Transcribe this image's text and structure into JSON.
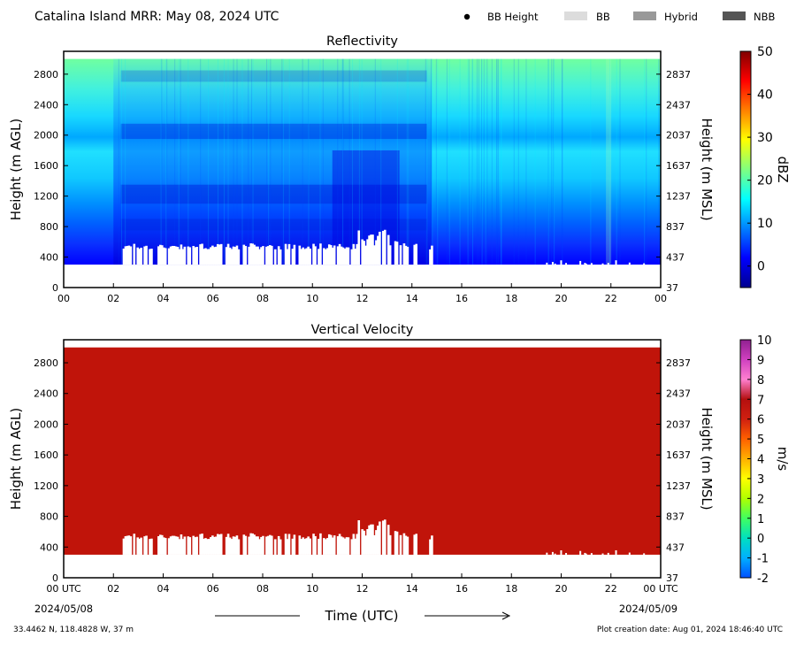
{
  "header": {
    "title": "Catalina Island MRR:  May 08, 2024 UTC",
    "legend": [
      {
        "label": "BB Height",
        "swatch": "dot",
        "color": "#000000"
      },
      {
        "label": "BB",
        "swatch": "bar",
        "color": "#dcdcdc"
      },
      {
        "label": "Hybrid",
        "swatch": "bar",
        "color": "#999999"
      },
      {
        "label": "NBB",
        "swatch": "bar",
        "color": "#555555"
      }
    ]
  },
  "footer": {
    "xlabel": "Time (UTC)",
    "location": "33.4462 N, 118.4828 W, 37 m",
    "creation": "Plot creation date: Aug 01, 2024 18:46:40 UTC",
    "date_start": "2024/05/08",
    "date_end": "2024/05/09"
  },
  "chart_data": [
    {
      "type": "heatmap",
      "title": "Reflectivity",
      "ylabel": "Height (m AGL)",
      "ylabel_right": "Height (m MSL)",
      "x_ticks": [
        "00",
        "02",
        "04",
        "06",
        "08",
        "10",
        "12",
        "14",
        "16",
        "18",
        "20",
        "22",
        "00"
      ],
      "xlim": [
        0,
        24
      ],
      "y_ticks": [
        0,
        400,
        800,
        1200,
        1600,
        2000,
        2400,
        2800
      ],
      "y_ticks_right": [
        "37",
        "437",
        "837",
        "1237",
        "1637",
        "2037",
        "2437",
        "2837"
      ],
      "ylim": [
        0,
        3100
      ],
      "data_extent": {
        "x": [
          0,
          24
        ],
        "y": [
          300,
          3000
        ]
      },
      "colorbar": {
        "label": "dBZ",
        "range": [
          -5,
          50
        ],
        "ticks": [
          0,
          10,
          20,
          30,
          40,
          50
        ],
        "colors": [
          "#00008f",
          "#0000ff",
          "#0080ff",
          "#00ffff",
          "#80ff80",
          "#ffff00",
          "#ff8000",
          "#ff0000",
          "#800000"
        ]
      }
    },
    {
      "type": "heatmap",
      "title": "Vertical Velocity",
      "ylabel": "Height (m AGL)",
      "ylabel_right": "Height (m MSL)",
      "x_ticks": [
        "00 UTC",
        "02",
        "04",
        "06",
        "08",
        "10",
        "12",
        "14",
        "16",
        "18",
        "20",
        "22",
        "00 UTC"
      ],
      "xlim": [
        0,
        24
      ],
      "y_ticks": [
        0,
        400,
        800,
        1200,
        1600,
        2000,
        2400,
        2800
      ],
      "y_ticks_right": [
        "37",
        "437",
        "837",
        "1237",
        "1637",
        "2037",
        "2437",
        "2837"
      ],
      "ylim": [
        0,
        3100
      ],
      "data_extent": {
        "x": [
          0,
          24
        ],
        "y": [
          300,
          3000
        ]
      },
      "fill_color": "#c0140a",
      "colorbar": {
        "label": "m/s",
        "range": [
          -2,
          10
        ],
        "ticks": [
          -2,
          -1,
          0,
          1,
          2,
          3,
          4,
          5,
          6,
          7,
          8,
          9,
          10
        ],
        "colors": [
          "#0050ff",
          "#00b0ff",
          "#00e0c0",
          "#40ff60",
          "#b0ff00",
          "#ffff00",
          "#ffb000",
          "#ff6000",
          "#d02010",
          "#b40f0f",
          "#ff80d0",
          "#d040c0",
          "#902090"
        ]
      }
    }
  ]
}
